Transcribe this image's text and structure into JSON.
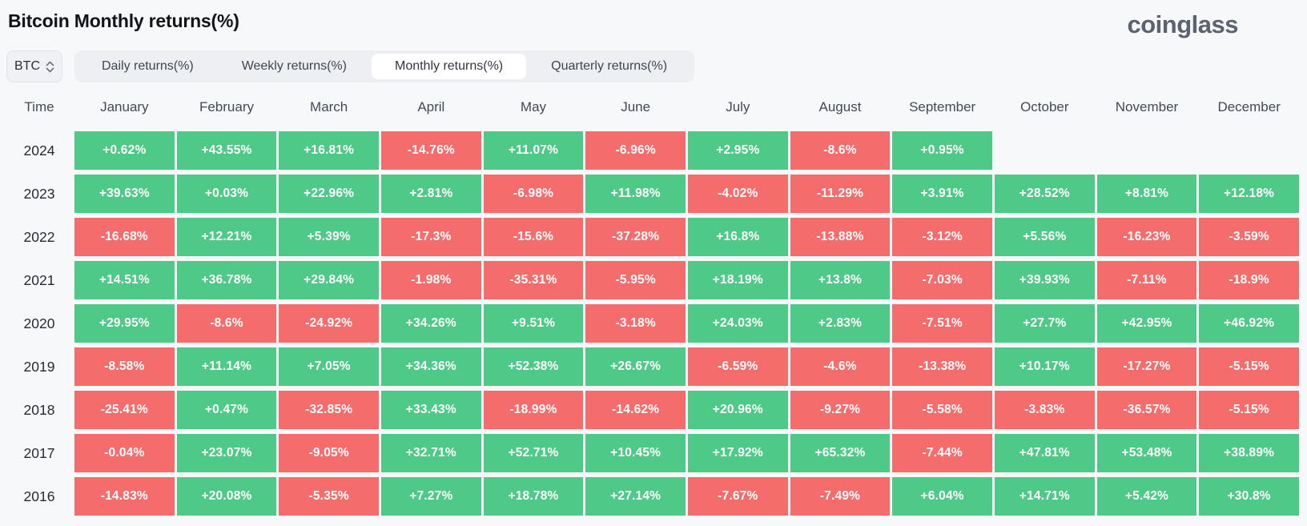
{
  "header": {
    "title": "Bitcoin Monthly returns(%)",
    "logo": "coinglass"
  },
  "controls": {
    "symbol": "BTC",
    "tabs": [
      {
        "slug": "daily",
        "label": "Daily returns(%)",
        "active": false
      },
      {
        "slug": "weekly",
        "label": "Weekly returns(%)",
        "active": false
      },
      {
        "slug": "monthly",
        "label": "Monthly returns(%)",
        "active": true
      },
      {
        "slug": "quarterly",
        "label": "Quarterly returns(%)",
        "active": false
      }
    ]
  },
  "colors": {
    "positive": "#4ec987",
    "negative": "#f56c6c"
  },
  "table": {
    "time_label": "Time",
    "months": [
      "January",
      "February",
      "March",
      "April",
      "May",
      "June",
      "July",
      "August",
      "September",
      "October",
      "November",
      "December"
    ],
    "rows": [
      {
        "year": "2024",
        "values": [
          "+0.62%",
          "+43.55%",
          "+16.81%",
          "-14.76%",
          "+11.07%",
          "-6.96%",
          "+2.95%",
          "-8.6%",
          "+0.95%",
          "",
          "",
          ""
        ]
      },
      {
        "year": "2023",
        "values": [
          "+39.63%",
          "+0.03%",
          "+22.96%",
          "+2.81%",
          "-6.98%",
          "+11.98%",
          "-4.02%",
          "-11.29%",
          "+3.91%",
          "+28.52%",
          "+8.81%",
          "+12.18%"
        ]
      },
      {
        "year": "2022",
        "values": [
          "-16.68%",
          "+12.21%",
          "+5.39%",
          "-17.3%",
          "-15.6%",
          "-37.28%",
          "+16.8%",
          "-13.88%",
          "-3.12%",
          "+5.56%",
          "-16.23%",
          "-3.59%"
        ]
      },
      {
        "year": "2021",
        "values": [
          "+14.51%",
          "+36.78%",
          "+29.84%",
          "-1.98%",
          "-35.31%",
          "-5.95%",
          "+18.19%",
          "+13.8%",
          "-7.03%",
          "+39.93%",
          "-7.11%",
          "-18.9%"
        ]
      },
      {
        "year": "2020",
        "values": [
          "+29.95%",
          "-8.6%",
          "-24.92%",
          "+34.26%",
          "+9.51%",
          "-3.18%",
          "+24.03%",
          "+2.83%",
          "-7.51%",
          "+27.7%",
          "+42.95%",
          "+46.92%"
        ]
      },
      {
        "year": "2019",
        "values": [
          "-8.58%",
          "+11.14%",
          "+7.05%",
          "+34.36%",
          "+52.38%",
          "+26.67%",
          "-6.59%",
          "-4.6%",
          "-13.38%",
          "+10.17%",
          "-17.27%",
          "-5.15%"
        ]
      },
      {
        "year": "2018",
        "values": [
          "-25.41%",
          "+0.47%",
          "-32.85%",
          "+33.43%",
          "-18.99%",
          "-14.62%",
          "+20.96%",
          "-9.27%",
          "-5.58%",
          "-3.83%",
          "-36.57%",
          "-5.15%"
        ]
      },
      {
        "year": "2017",
        "values": [
          "-0.04%",
          "+23.07%",
          "-9.05%",
          "+32.71%",
          "+52.71%",
          "+10.45%",
          "+17.92%",
          "+65.32%",
          "-7.44%",
          "+47.81%",
          "+53.48%",
          "+38.89%"
        ]
      },
      {
        "year": "2016",
        "values": [
          "-14.83%",
          "+20.08%",
          "-5.35%",
          "+7.27%",
          "+18.78%",
          "+27.14%",
          "-7.67%",
          "-7.49%",
          "+6.04%",
          "+14.71%",
          "+5.42%",
          "+30.8%"
        ]
      }
    ]
  }
}
